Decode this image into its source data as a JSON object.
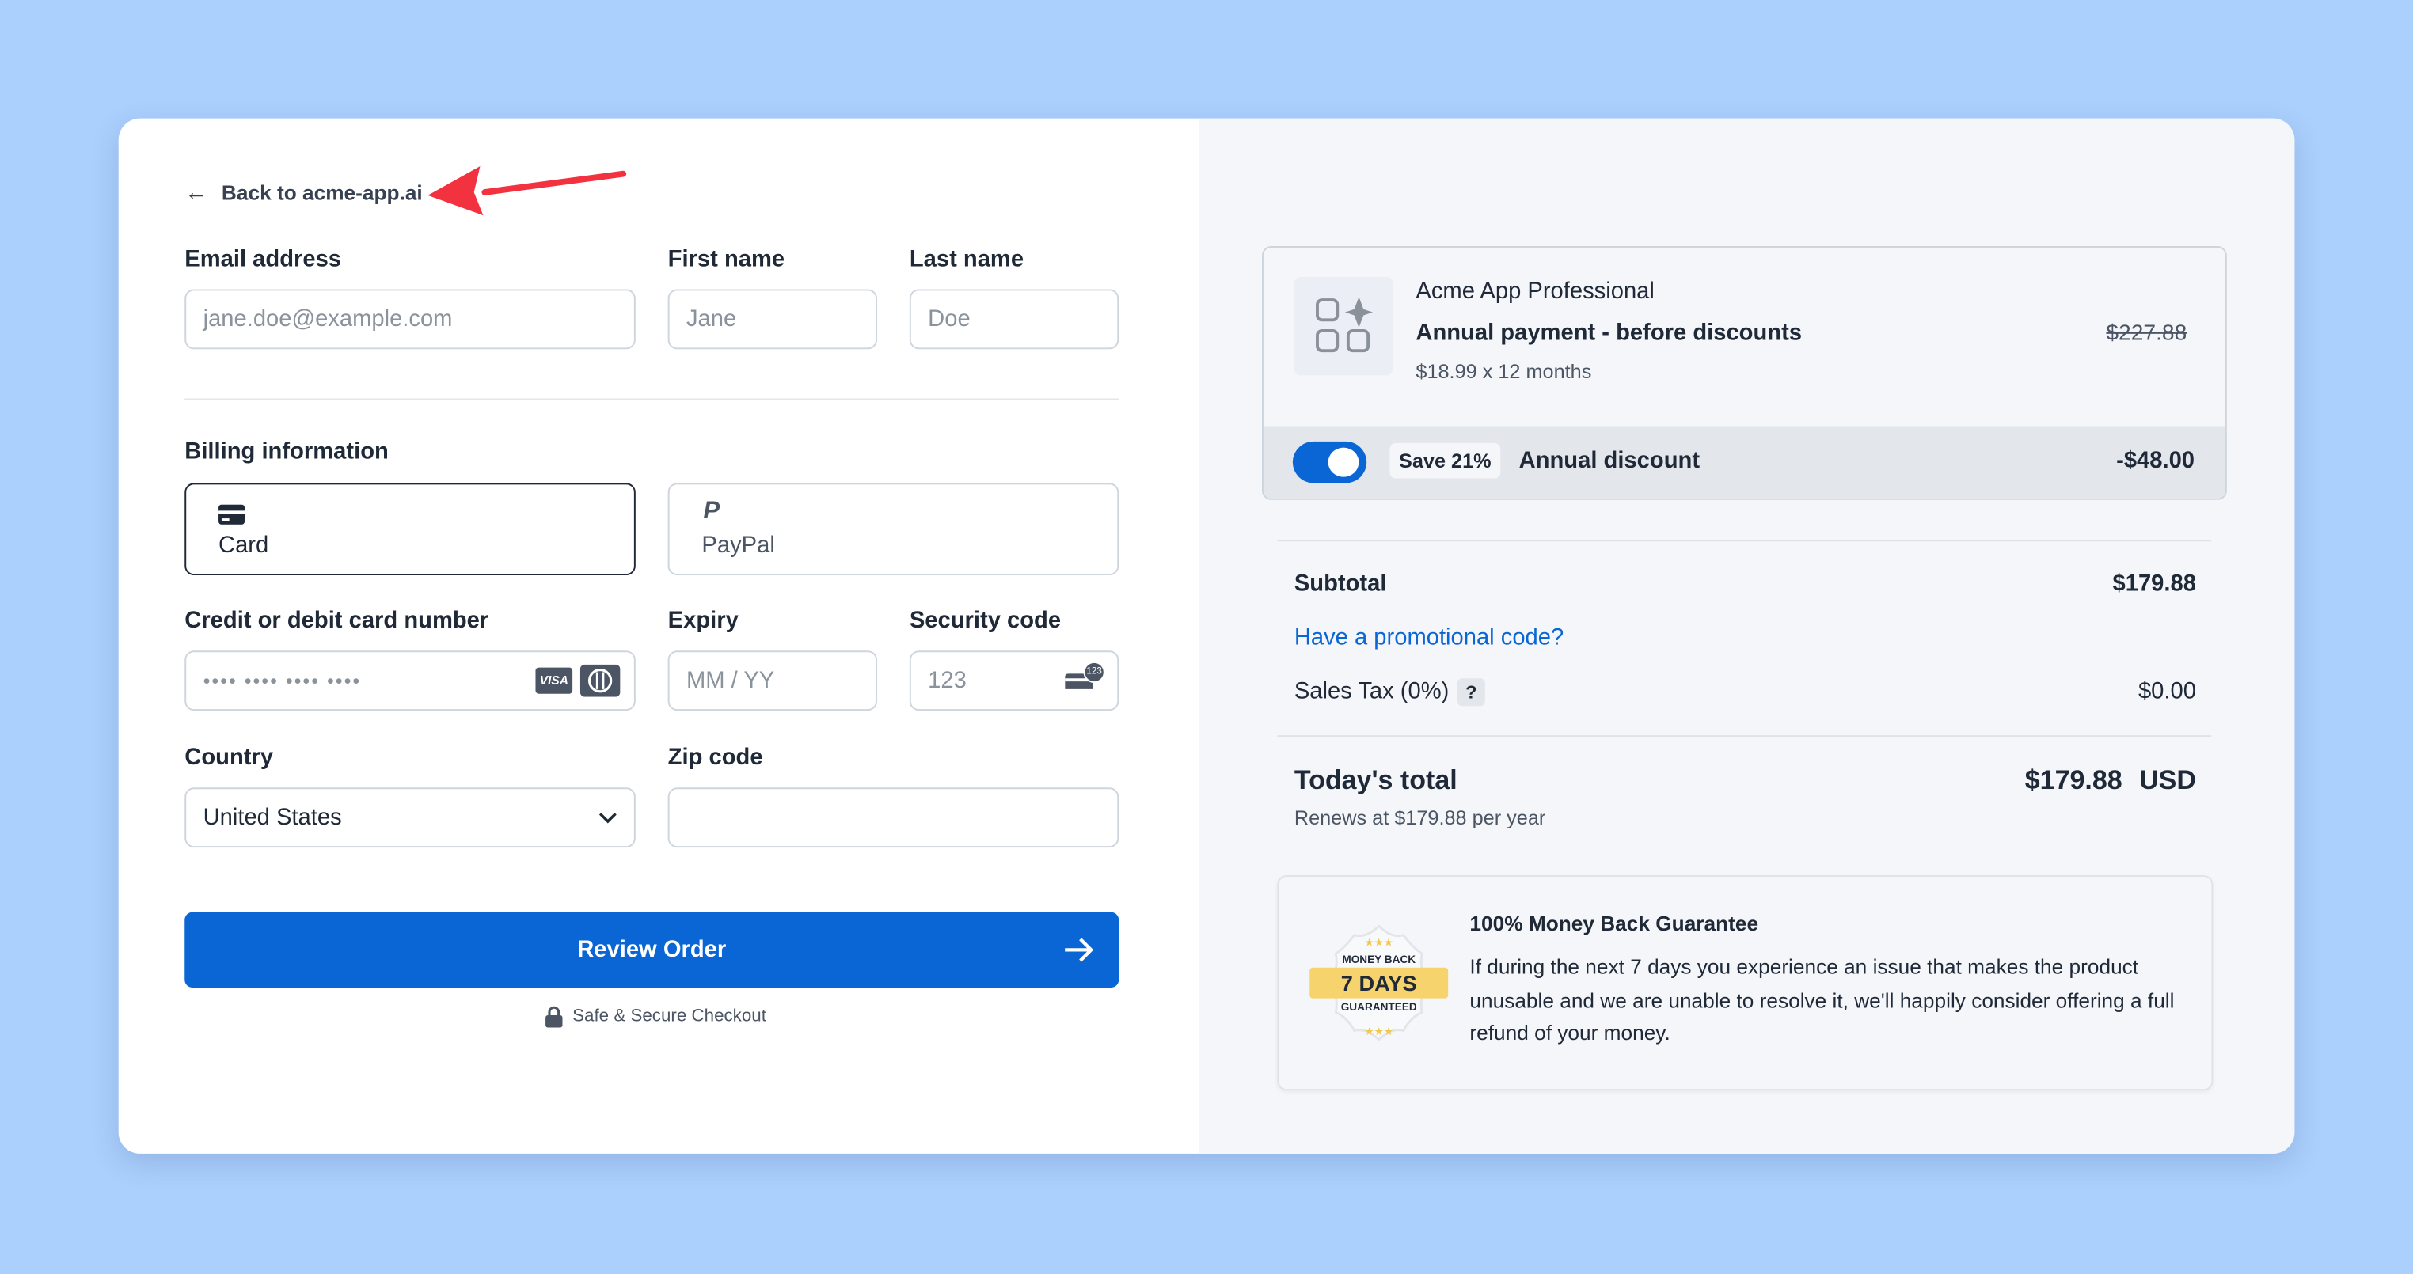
{
  "back_link": "Back to acme-app.ai",
  "form": {
    "email_label": "Email address",
    "email_placeholder": "jane.doe@example.com",
    "first_label": "First name",
    "first_placeholder": "Jane",
    "last_label": "Last name",
    "last_placeholder": "Doe",
    "billing_label": "Billing information",
    "methods": [
      {
        "label": "Card",
        "icon": "credit-card-icon",
        "selected": true
      },
      {
        "label": "PayPal",
        "icon": "paypal-icon",
        "selected": false
      }
    ],
    "card_label": "Credit or debit card number",
    "card_placeholder": "•••• •••• •••• ••••",
    "visa_text": "VISA",
    "expiry_label": "Expiry",
    "expiry_placeholder": "MM / YY",
    "security_label": "Security code",
    "security_placeholder": "123",
    "cvc_badge": "123",
    "country_label": "Country",
    "country_value": "United States",
    "zip_label": "Zip code",
    "zip_value": "",
    "submit": "Review Order",
    "secure_note": "Safe & Secure Checkout"
  },
  "summary": {
    "product_name": "Acme App Professional",
    "plan": "Annual payment - before discounts",
    "plan_detail": "$18.99 x 12 months",
    "original_price": "$227.88",
    "discount_toggle_on": true,
    "save_badge": "Save 21%",
    "discount_label": "Annual discount",
    "discount_amount": "-$48.00",
    "subtotal_label": "Subtotal",
    "subtotal": "$179.88",
    "promo_link": "Have a promotional code?",
    "tax_label": "Sales Tax (0%)",
    "tax_help": "?",
    "tax": "$0.00",
    "total_label": "Today's total",
    "total": "$179.88",
    "currency": "USD",
    "renews": "Renews at $179.88 per year"
  },
  "guarantee": {
    "badge_top": "MONEY BACK",
    "badge_main": "7 DAYS",
    "badge_bottom": "GUARANTEED",
    "title": "100% Money Back Guarantee",
    "text": "If during the next 7 days you experience an issue that makes the product unusable and we are unable to resolve it, we'll happily consider offering a full refund of your money."
  },
  "colors": {
    "background": "#acd0fd",
    "primary": "#0a66d4",
    "annotation_arrow": "#f2323f",
    "badge_gold": "#f7d36e"
  }
}
